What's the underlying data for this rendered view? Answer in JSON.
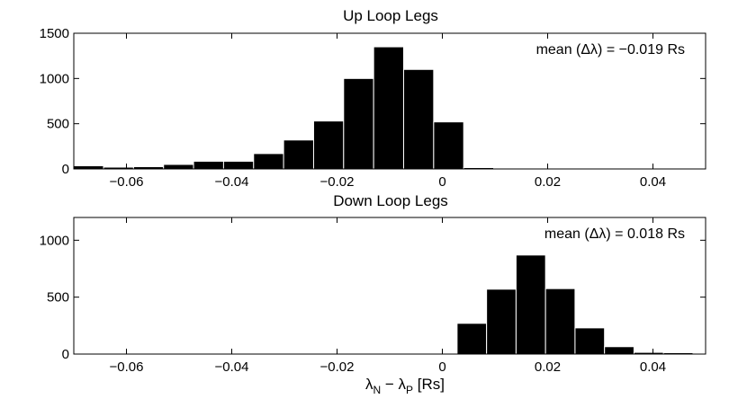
{
  "chart_data": [
    {
      "type": "bar",
      "title": "Up Loop Legs",
      "annotation": "mean (Δλ) = −0.019 Rs",
      "xlim": [
        -0.07,
        0.05
      ],
      "ylim": [
        0,
        1500
      ],
      "yticks": [
        0,
        500,
        1000,
        1500
      ],
      "ytick_labels": [
        "0",
        "500",
        "1000",
        "1500"
      ],
      "xticks": [
        -0.06,
        -0.04,
        -0.02,
        0,
        0.02,
        0.04
      ],
      "xtick_labels": [
        "−0.06",
        "−0.04",
        "−0.02",
        "0",
        "0.02",
        "0.04"
      ],
      "bin_width": 0.0057,
      "bin_centers": [
        -0.0672,
        -0.0615,
        -0.0558,
        -0.0501,
        -0.0444,
        -0.0387,
        -0.033,
        -0.0273,
        -0.0216,
        -0.0159,
        -0.0102,
        -0.0045,
        0.0012,
        0.0069,
        0.0126,
        0.0183,
        0.024,
        0.0297,
        0.0354,
        0.0411,
        0.0468
      ],
      "values": [
        35,
        20,
        25,
        50,
        85,
        85,
        170,
        320,
        530,
        1000,
        1350,
        1100,
        520,
        15,
        5,
        3,
        3,
        2,
        2,
        2,
        8
      ],
      "grid": false
    },
    {
      "type": "bar",
      "title": "Down Loop Legs",
      "annotation": "mean (Δλ) = 0.018 Rs",
      "xlim": [
        -0.07,
        0.05
      ],
      "ylim": [
        0,
        1200
      ],
      "yticks": [
        0,
        500,
        1000
      ],
      "ytick_labels": [
        "0",
        "500",
        "1000"
      ],
      "xticks": [
        -0.06,
        -0.04,
        -0.02,
        0,
        0.02,
        0.04
      ],
      "xtick_labels": [
        "−0.06",
        "−0.04",
        "−0.02",
        "0",
        "0.02",
        "0.04"
      ],
      "xlabel_main": "λ",
      "xlabel_sub1": "N",
      "xlabel_mid": " − λ",
      "xlabel_sub2": "P",
      "xlabel_tail": " [Rs]",
      "bin_width": 0.0056,
      "bin_centers": [
        -0.0672,
        -0.0616,
        -0.056,
        -0.0504,
        -0.0448,
        -0.0392,
        -0.0336,
        -0.028,
        -0.0224,
        -0.0168,
        -0.0112,
        -0.0056,
        0.0,
        0.0056,
        0.0112,
        0.0168,
        0.0224,
        0.028,
        0.0336,
        0.0392,
        0.0448
      ],
      "values": [
        0,
        0,
        0,
        0,
        0,
        0,
        0,
        0,
        0,
        0,
        0,
        0,
        4,
        270,
        570,
        870,
        575,
        230,
        65,
        15,
        12
      ],
      "grid": false
    }
  ]
}
